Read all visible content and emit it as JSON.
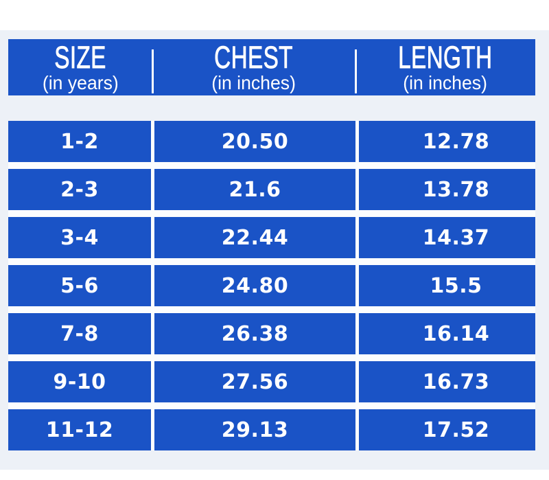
{
  "colors": {
    "cell_blue": "#1a53c6",
    "page_bg": "#edf1f7",
    "band_white": "#ffffff",
    "gap_white": "#fbfdfe",
    "text_white": "#ffffff"
  },
  "header": {
    "columns": [
      {
        "title": "SIZE",
        "subtitle": "(in years)"
      },
      {
        "title": "CHEST",
        "subtitle": "(in inches)"
      },
      {
        "title": "LENGTH",
        "subtitle": "(in inches)"
      }
    ]
  },
  "rows": [
    {
      "size": "1-2",
      "chest": "20.50",
      "length": "12.78"
    },
    {
      "size": "2-3",
      "chest": "21.6",
      "length": "13.78"
    },
    {
      "size": "3-4",
      "chest": "22.44",
      "length": "14.37"
    },
    {
      "size": "5-6",
      "chest": "24.80",
      "length": "15.5"
    },
    {
      "size": "7-8",
      "chest": "26.38",
      "length": "16.14"
    },
    {
      "size": "9-10",
      "chest": "27.56",
      "length": "16.73"
    },
    {
      "size": "11-12",
      "chest": "29.13",
      "length": "17.52"
    }
  ],
  "chart_data": {
    "type": "table",
    "columns": [
      "SIZE (in years)",
      "CHEST (in inches)",
      "LENGTH (in inches)"
    ],
    "rows": [
      [
        "1-2",
        "20.50",
        "12.78"
      ],
      [
        "2-3",
        "21.6",
        "13.78"
      ],
      [
        "3-4",
        "22.44",
        "14.37"
      ],
      [
        "5-6",
        "24.80",
        "15.5"
      ],
      [
        "7-8",
        "26.38",
        "16.14"
      ],
      [
        "9-10",
        "27.56",
        "16.73"
      ],
      [
        "11-12",
        "29.13",
        "17.52"
      ]
    ]
  }
}
